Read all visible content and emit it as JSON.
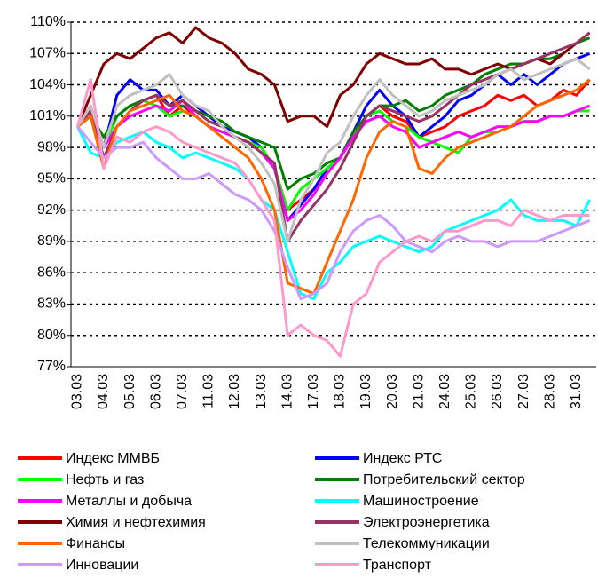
{
  "chart_data": {
    "type": "line",
    "categories": [
      "03.03",
      null,
      "04.03",
      null,
      "05.03",
      null,
      "06.03",
      null,
      "07.03",
      null,
      "11.03",
      null,
      "12.03",
      null,
      "13.03",
      null,
      "14.03",
      null,
      "17.03",
      null,
      "18.03",
      null,
      "19.03",
      null,
      "20.03",
      null,
      "21.03",
      null,
      "24.03",
      null,
      "25.03",
      null,
      "26.03",
      null,
      "27.03",
      null,
      "28.03",
      null,
      "31.03",
      null
    ],
    "ylim": [
      77,
      110
    ],
    "yticks": [
      {
        "value": 77,
        "label": "77%"
      },
      {
        "value": 80,
        "label": "80%"
      },
      {
        "value": 83,
        "label": "83%"
      },
      {
        "value": 86,
        "label": "86%"
      },
      {
        "value": 89,
        "label": "89%"
      },
      {
        "value": 92,
        "label": "92%"
      },
      {
        "value": 95,
        "label": "95%"
      },
      {
        "value": 98,
        "label": "98%"
      },
      {
        "value": 101,
        "label": "101%"
      },
      {
        "value": 104,
        "label": "104%"
      },
      {
        "value": 107,
        "label": "107%"
      },
      {
        "value": 110,
        "label": "110%"
      }
    ],
    "grid": true,
    "legend": "bottom",
    "series": [
      {
        "name": "Индекс ММВБ",
        "color": "#ff0000",
        "values": [
          100,
          102,
          98,
          101,
          102,
          102.5,
          103,
          101,
          102,
          101,
          100,
          99.5,
          99,
          98.5,
          98,
          96,
          92,
          93,
          94,
          96,
          97,
          99,
          101,
          102,
          101,
          100.5,
          99,
          99.5,
          100,
          101,
          101.5,
          102,
          103,
          102.5,
          103,
          102,
          102.5,
          103.5,
          103,
          104.5
        ]
      },
      {
        "name": "Индекс РТС",
        "color": "#0000ff",
        "values": [
          100,
          101,
          98,
          103,
          104.5,
          103.5,
          103.5,
          102,
          103,
          102,
          101,
          100,
          99.5,
          99,
          98,
          96,
          91,
          92.5,
          94,
          96,
          97,
          99.5,
          102,
          103.5,
          102,
          101,
          99,
          100,
          101,
          102.5,
          103,
          104,
          105,
          104,
          105,
          104,
          105,
          106,
          106.5,
          107
        ]
      },
      {
        "name": "Нефть и газ",
        "color": "#00ff00",
        "values": [
          100,
          101,
          98,
          101,
          102,
          102.5,
          102,
          101,
          101.5,
          101,
          100,
          99.5,
          99,
          98.5,
          98,
          96,
          92,
          94,
          95,
          96,
          97,
          99,
          101,
          101.5,
          100.5,
          100,
          99,
          98.5,
          98,
          97.5,
          99,
          99.5,
          99.5,
          100,
          100.5,
          100.5,
          101,
          101,
          101.5,
          101.5
        ]
      },
      {
        "name": "Потребительский сектор",
        "color": "#008000",
        "values": [
          100,
          101,
          99,
          101,
          102,
          102.5,
          103,
          102,
          102,
          101.5,
          101,
          100.5,
          99.5,
          99,
          98.5,
          98,
          94,
          95,
          95.5,
          96.5,
          97,
          99.5,
          101,
          102,
          102,
          102.5,
          101.5,
          102,
          103,
          103.5,
          104,
          105,
          105.5,
          106,
          106,
          106.5,
          106.5,
          107,
          108,
          108.5
        ]
      },
      {
        "name": "Металлы и добыча",
        "color": "#ff00ff",
        "values": [
          100,
          101.5,
          98,
          100,
          101,
          101.5,
          102,
          101.5,
          102.5,
          101,
          100,
          99.5,
          99,
          98.5,
          97.5,
          96,
          91,
          92,
          93.5,
          95.5,
          97,
          99,
          100.5,
          101,
          100,
          99.5,
          98,
          98.5,
          99,
          99.5,
          99,
          99.5,
          100,
          100,
          100.5,
          100.5,
          101,
          101,
          101.5,
          102
        ]
      },
      {
        "name": "Машиностроение",
        "color": "#00ffff",
        "values": [
          100,
          97.5,
          97,
          98.5,
          99,
          99.5,
          98.5,
          98,
          97,
          97.5,
          97,
          96.5,
          96,
          95,
          93,
          92,
          88,
          84,
          83.5,
          86,
          87,
          88.5,
          89,
          89.5,
          89,
          88.5,
          88,
          88.5,
          90,
          90.5,
          91,
          91.5,
          92,
          93,
          91.5,
          91,
          91,
          91,
          90.5,
          93
        ]
      },
      {
        "name": "Химия и нефтехимия",
        "color": "#800000",
        "values": [
          100,
          103,
          106,
          107,
          106.5,
          107.5,
          108.5,
          109,
          108,
          109.5,
          108.5,
          108,
          107,
          105.5,
          105,
          104,
          100.5,
          101,
          101,
          100,
          103,
          104,
          106,
          107,
          106.5,
          106,
          106,
          106.5,
          105.5,
          105.5,
          105,
          105.5,
          106,
          105.5,
          106,
          106.5,
          106,
          107,
          108,
          109
        ]
      },
      {
        "name": "Электроэнергетика",
        "color": "#993366",
        "values": [
          100,
          101.5,
          97,
          100,
          101.5,
          102.5,
          103,
          102,
          102.5,
          101.5,
          100.5,
          100,
          99,
          98.5,
          97.5,
          96.5,
          89,
          91,
          92.5,
          94,
          96,
          98.5,
          101,
          102,
          101.5,
          101,
          100.5,
          101,
          102,
          103,
          104,
          104.5,
          105,
          105.5,
          106,
          106.5,
          107,
          107.5,
          108,
          109
        ]
      },
      {
        "name": "Финансы",
        "color": "#ff6600",
        "values": [
          100,
          101,
          96,
          100,
          101.5,
          102,
          102.5,
          103,
          101.5,
          101,
          100,
          99,
          98,
          97,
          95,
          92,
          85,
          84.5,
          84,
          87,
          90,
          93,
          97,
          99.5,
          100.5,
          100,
          96,
          95.5,
          97,
          98,
          98.5,
          99,
          99.5,
          100,
          101,
          102,
          102.5,
          103,
          103.5,
          104.5
        ]
      },
      {
        "name": "Телекоммуникации",
        "color": "#c0c0c0",
        "values": [
          100,
          102,
          98,
          102,
          103,
          103.5,
          104,
          105,
          103,
          102,
          101.5,
          100,
          99,
          98,
          96.5,
          94.5,
          89,
          93,
          95,
          97.5,
          98.5,
          101,
          103,
          104.5,
          103,
          102,
          101,
          101.5,
          102.5,
          103,
          103.5,
          104,
          105,
          105.5,
          104.5,
          105,
          105.5,
          106,
          106.5,
          105.5
        ]
      },
      {
        "name": "Инновации",
        "color": "#cc99ff",
        "values": [
          100,
          98.5,
          97,
          98,
          98,
          98.5,
          97,
          96,
          95,
          95,
          95.5,
          94.5,
          93.5,
          93,
          92,
          90,
          86.5,
          83.5,
          84,
          85,
          88,
          90,
          91,
          91.5,
          90.5,
          89,
          88.5,
          88,
          89,
          89.5,
          89,
          89,
          88.5,
          89,
          89,
          89,
          89.5,
          90,
          90.5,
          91
        ]
      },
      {
        "name": "Транспорт",
        "color": "#ff99cc",
        "values": [
          100,
          104.5,
          96,
          99,
          98.5,
          99.5,
          100,
          99.5,
          98.5,
          98,
          97.5,
          97,
          96.5,
          95,
          93,
          91,
          80,
          81,
          80,
          79.5,
          78,
          83,
          84,
          87,
          88,
          89,
          89.5,
          89,
          90,
          90,
          90.5,
          91,
          91,
          90.5,
          92,
          91.5,
          91,
          91.5,
          91.5,
          91.5
        ]
      }
    ]
  }
}
